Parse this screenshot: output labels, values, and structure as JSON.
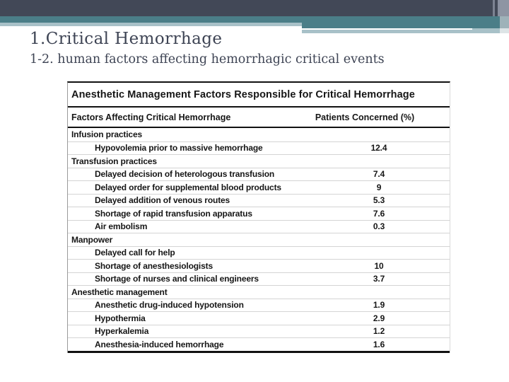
{
  "slide": {
    "title": "1.Critical Hemorrhage",
    "subtitle": "1-2. human factors affecting hemorrhagic critical events"
  },
  "colors": {
    "bar_dark": "#424857",
    "bar_teal": "#4b7e88",
    "bar_light": "#a8c1c8",
    "title_text": "#3e4454",
    "table_text": "#161616",
    "table_border": "#111111",
    "row_divider": "#d4d4d4"
  },
  "table": {
    "title": "Anesthetic Management Factors Responsible for Critical Hemorrhage",
    "columns": [
      "Factors Affecting Critical Hemorrhage",
      "Patients Concerned (%)"
    ],
    "rows": [
      {
        "label": "Infusion practices",
        "value": "",
        "indent": false
      },
      {
        "label": "Hypovolemia prior to massive hemorrhage",
        "value": "12.4",
        "indent": true
      },
      {
        "label": "Transfusion practices",
        "value": "",
        "indent": false
      },
      {
        "label": "Delayed decision of heterologous transfusion",
        "value": "7.4",
        "indent": true
      },
      {
        "label": "Delayed order for supplemental blood products",
        "value": "9",
        "indent": true
      },
      {
        "label": "Delayed addition of venous routes",
        "value": "5.3",
        "indent": true
      },
      {
        "label": "Shortage of rapid transfusion apparatus",
        "value": "7.6",
        "indent": true
      },
      {
        "label": "Air embolism",
        "value": "0.3",
        "indent": true
      },
      {
        "label": "Manpower",
        "value": "",
        "indent": false
      },
      {
        "label": "Delayed call for help",
        "value": "",
        "indent": true
      },
      {
        "label": "Shortage of anesthesiologists",
        "value": "10",
        "indent": true
      },
      {
        "label": "Shortage of nurses and clinical engineers",
        "value": "3.7",
        "indent": true
      },
      {
        "label": "Anesthetic management",
        "value": "",
        "indent": false
      },
      {
        "label": "Anesthetic drug-induced hypotension",
        "value": "1.9",
        "indent": true
      },
      {
        "label": "Hypothermia",
        "value": "2.9",
        "indent": true
      },
      {
        "label": "Hyperkalemia",
        "value": "1.2",
        "indent": true
      },
      {
        "label": "Anesthesia-induced hemorrhage",
        "value": "1.6",
        "indent": true
      }
    ]
  }
}
